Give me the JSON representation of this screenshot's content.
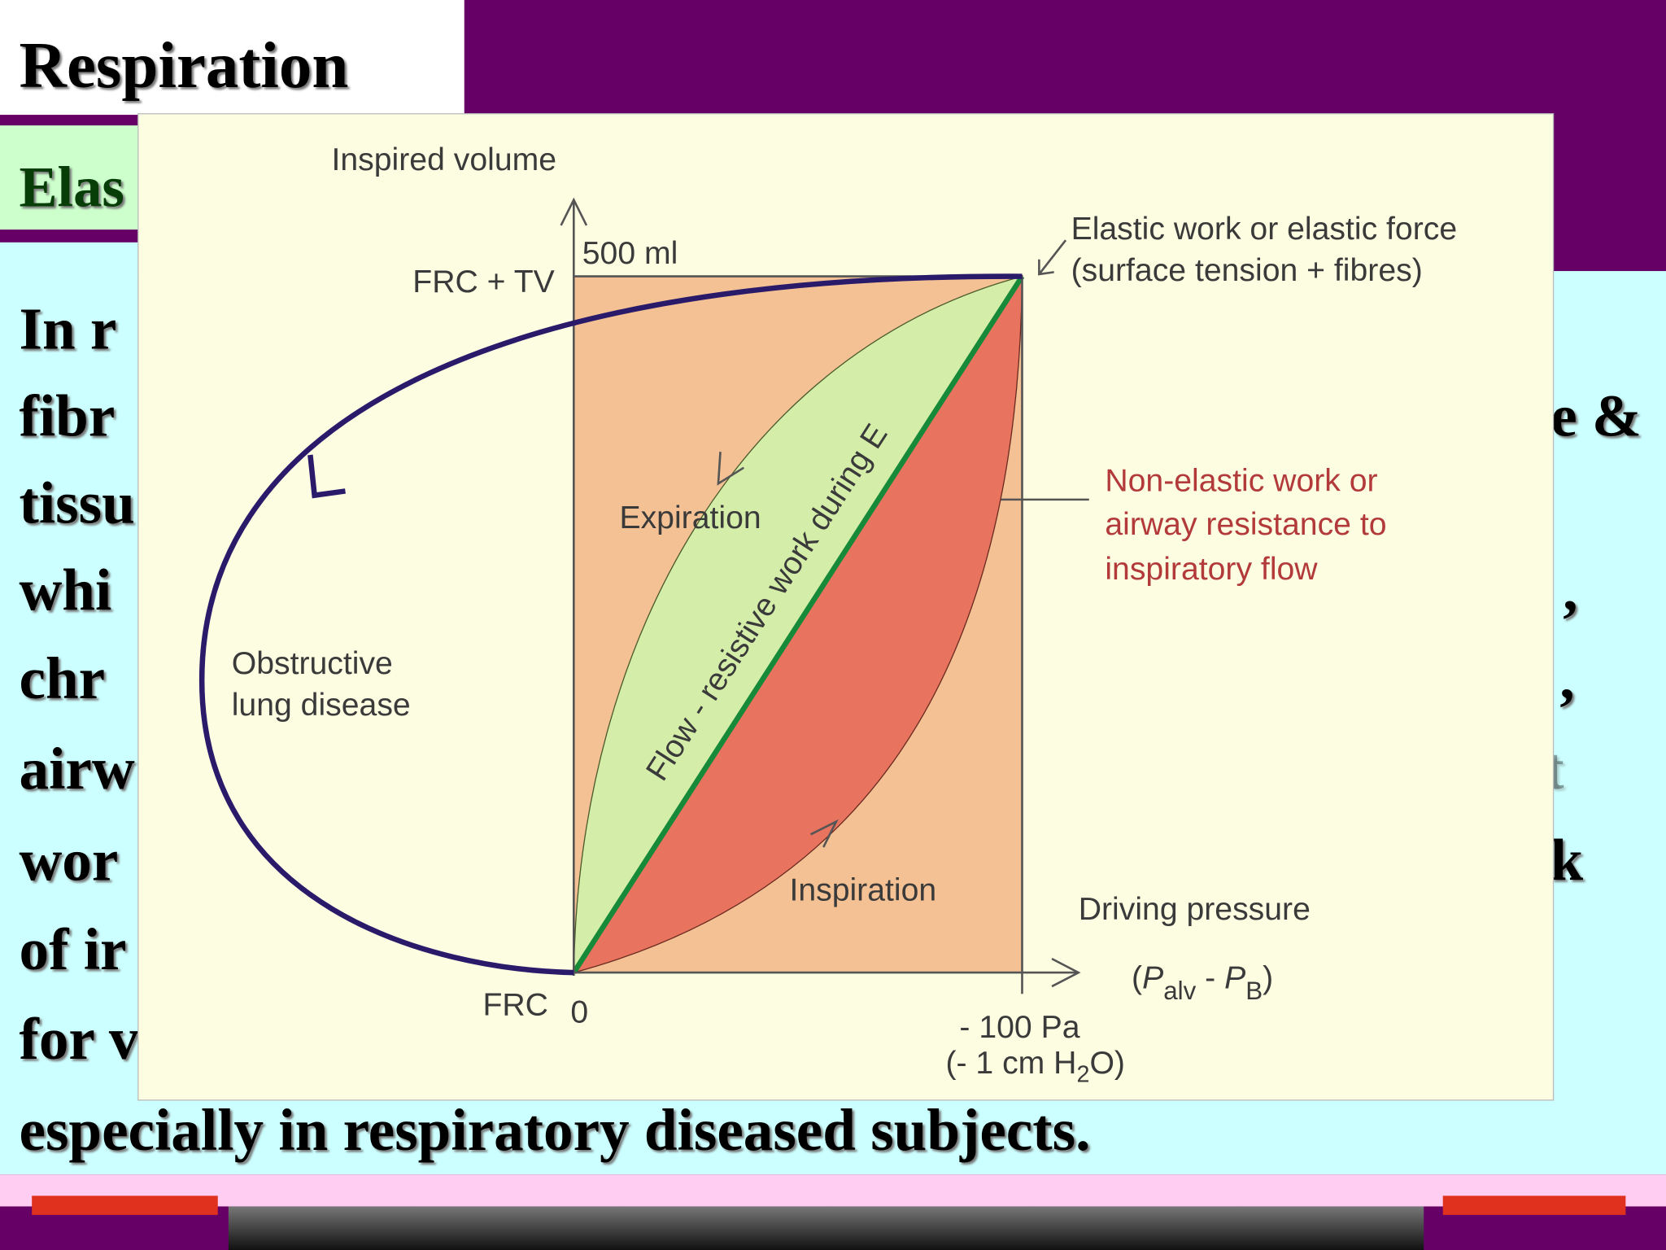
{
  "header": {
    "title": "Respiration",
    "subtitle_fragment": "Elas"
  },
  "body": {
    "left_fragments": [
      "In r",
      "fibr",
      "tissu",
      "whi",
      "chr",
      "airw",
      "wor",
      "of ir",
      "for v"
    ],
    "right_fragments": [
      "e &",
      ",",
      ",",
      "t",
      "k"
    ],
    "last_line": "especially in respiratory diseased subjects."
  },
  "diagram": {
    "y_axis_label": "Inspired volume",
    "volume_mark": "500 ml",
    "upper_level": "FRC + TV",
    "lower_level": "FRC",
    "origin": "0",
    "pressure_mark": "- 100 Pa",
    "pressure_mark_alt": {
      "before": "(- 1 cm H",
      "sub": "2",
      "after": "O)"
    },
    "x_axis_label": "Driving pressure",
    "x_axis_formula": {
      "open": "(",
      "p1": "P",
      "sub1": "alv",
      "minus": " - ",
      "p2": "P",
      "sub2": "B",
      "close": ")"
    },
    "elastic_note": [
      "Elastic work or elastic force",
      "(surface tension + fibres)"
    ],
    "non_elastic_note": [
      "Non-elastic work or",
      "airway resistance to",
      "inspiratory flow"
    ],
    "expiration": "Expiration",
    "inspiration": "Inspiration",
    "diagonal_label": "Flow - resistive work during E",
    "loop_label": [
      "Obstructive",
      "lung disease"
    ]
  }
}
